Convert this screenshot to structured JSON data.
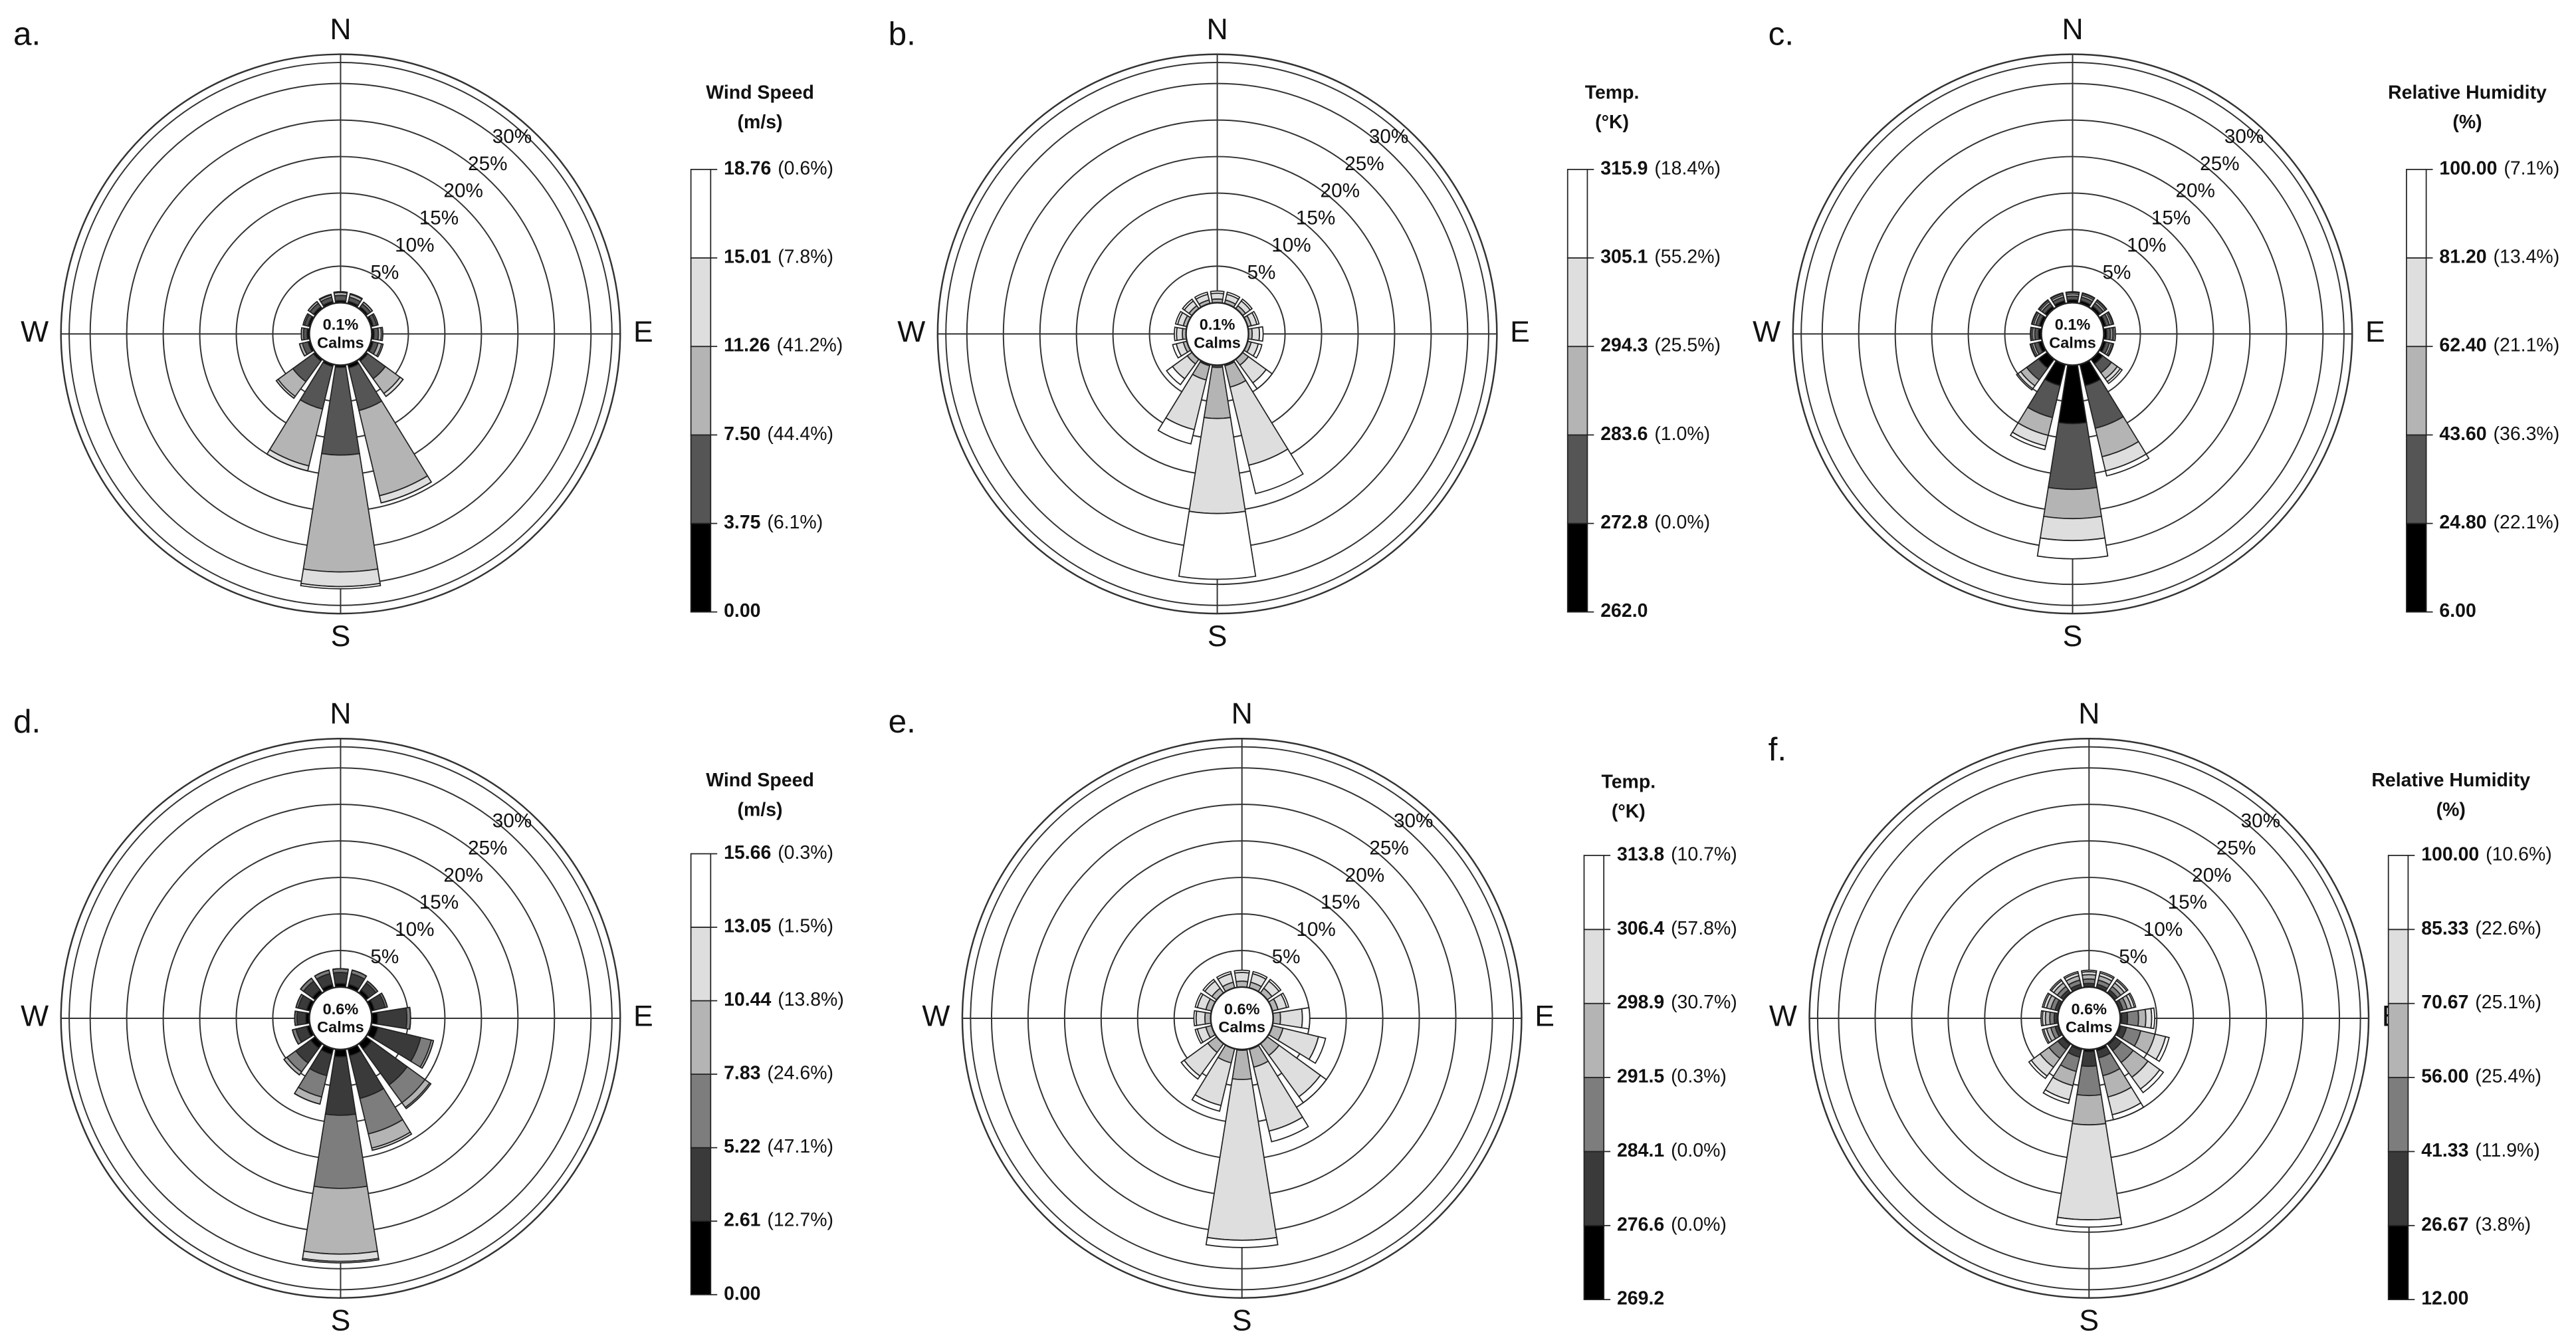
{
  "chart_data": [
    {
      "type": "windrose",
      "panel": "a.",
      "direction_labels": [
        "N",
        "E",
        "S",
        "W"
      ],
      "rlim": [
        0,
        34
      ],
      "rticks": [
        {
          "value": 5,
          "label": "5%"
        },
        {
          "value": 10,
          "label": "10%"
        },
        {
          "value": 15,
          "label": "15%"
        },
        {
          "value": 20,
          "label": "20%"
        },
        {
          "value": 25,
          "label": "25%"
        },
        {
          "value": 30,
          "label": "30%"
        }
      ],
      "calms": {
        "value": 0.1,
        "label": "0.1%"
      },
      "calms_text": "Calms",
      "legend": {
        "title": "Wind Speed",
        "unit": "(m/s)",
        "edges": [
          {
            "value": 0,
            "label": "0.00"
          },
          3.75,
          {
            "value": 7.5,
            "label": "7.50"
          },
          11.26,
          15.01,
          18.76
        ],
        "shares": [
          6.1,
          44.4,
          41.2,
          7.8,
          0.6
        ],
        "share_labels": [
          "(6.1%)",
          "(44.4%)",
          "(41.2%)",
          "(7.8%)",
          "(0.6%)"
        ]
      },
      "series": [
        {
          "color": "#000000",
          "values": [
            0.3,
            0.3,
            0.3,
            0.3,
            0.3,
            0.3,
            0.3,
            0.5,
            0.3,
            0.3,
            0.3,
            0.3,
            0.3,
            0.3,
            0.3,
            0.3
          ]
        },
        {
          "color": "#555555",
          "values": [
            0.7,
            0.6,
            0.5,
            0.5,
            0.6,
            0.7,
            3,
            6,
            12,
            6,
            3.5,
            0.8,
            0.5,
            0.5,
            0.6,
            0.6
          ]
        },
        {
          "color": "#b4b4b4",
          "values": [
            0.4,
            0.4,
            0.3,
            0.2,
            0.4,
            0.5,
            2.5,
            12,
            16,
            8,
            2.5,
            0.4,
            0.3,
            0.2,
            0.3,
            0.3
          ]
        },
        {
          "color": "#dedede",
          "values": [
            0.1,
            0.1,
            0,
            0,
            0.2,
            0.2,
            0.5,
            1,
            2,
            0.7,
            0.3,
            0,
            0,
            0,
            0,
            0.1
          ]
        },
        {
          "color": "#ffffff",
          "values": [
            0,
            0,
            0,
            0,
            0,
            0,
            0,
            0,
            0.3,
            0,
            0,
            0,
            0,
            0,
            0,
            0
          ]
        }
      ]
    },
    {
      "type": "windrose",
      "panel": "b.",
      "direction_labels": [
        "N",
        "E",
        "S",
        "W"
      ],
      "rlim": [
        0,
        34
      ],
      "rticks": [
        {
          "value": 5,
          "label": "5%"
        },
        {
          "value": 10,
          "label": "10%"
        },
        {
          "value": 15,
          "label": "15%"
        },
        {
          "value": 20,
          "label": "20%"
        },
        {
          "value": 25,
          "label": "25%"
        },
        {
          "value": 30,
          "label": "30%"
        }
      ],
      "calms": {
        "value": 0.1,
        "label": "0.1%"
      },
      "calms_text": "Calms",
      "legend": {
        "title": "Temp.",
        "unit": "(°K)",
        "edges": [
          {
            "value": 262,
            "label": "262.0"
          },
          272.8,
          283.6,
          294.3,
          305.1,
          315.9
        ],
        "shares": [
          0,
          1,
          25.5,
          55.2,
          18.4
        ],
        "share_labels": [
          "(0.0%)",
          "(1.0%)",
          "(25.5%)",
          "(55.2%)",
          "(18.4%)"
        ]
      },
      "series": [
        {
          "color": "#000000",
          "values": [
            0,
            0,
            0,
            0,
            0,
            0,
            0,
            0,
            0,
            0,
            0,
            0,
            0,
            0,
            0,
            0
          ]
        },
        {
          "color": "#555555",
          "values": [
            0,
            0,
            0,
            0,
            0,
            0,
            0,
            0.2,
            0.3,
            0.2,
            0,
            0,
            0,
            0,
            0,
            0
          ]
        },
        {
          "color": "#b4b4b4",
          "values": [
            0.5,
            0.5,
            0.5,
            0.5,
            0.5,
            0.5,
            1,
            3,
            7,
            2,
            0.8,
            0.5,
            0.5,
            0.5,
            0.5,
            0.5
          ]
        },
        {
          "color": "#dedede",
          "values": [
            0.8,
            0.8,
            0.8,
            0.8,
            1,
            1,
            3,
            11,
            13,
            7,
            2.5,
            1,
            0.8,
            0.8,
            0.8,
            0.8
          ]
        },
        {
          "color": "#ffffff",
          "values": [
            0.3,
            0.3,
            0.3,
            0.3,
            0.5,
            0.5,
            1,
            4,
            9,
            2,
            1,
            0.5,
            0.3,
            0.3,
            0.3,
            0.3
          ]
        }
      ]
    },
    {
      "type": "windrose",
      "panel": "c.",
      "direction_labels": [
        "N",
        "E",
        "S",
        "W"
      ],
      "rlim": [
        0,
        34
      ],
      "rticks": [
        {
          "value": 5,
          "label": "5%"
        },
        {
          "value": 10,
          "label": "10%"
        },
        {
          "value": 15,
          "label": "15%"
        },
        {
          "value": 20,
          "label": "20%"
        },
        {
          "value": 25,
          "label": "25%"
        },
        {
          "value": 30,
          "label": "30%"
        }
      ],
      "calms": {
        "value": 0.1,
        "label": "0.1%"
      },
      "calms_text": "Calms",
      "legend": {
        "title": "Relative Humidity",
        "unit": "(%)",
        "edges": [
          {
            "value": 6,
            "label": "6.00"
          },
          {
            "value": 24.8,
            "label": "24.80"
          },
          {
            "value": 43.6,
            "label": "43.60"
          },
          {
            "value": 62.4,
            "label": "62.40"
          },
          {
            "value": 81.2,
            "label": "81.20"
          },
          {
            "value": 100,
            "label": "100.00"
          }
        ],
        "shares": [
          22.1,
          36.3,
          21.1,
          13.4,
          7.1
        ],
        "share_labels": [
          "(22.1%)",
          "(36.3%)",
          "(21.1%)",
          "(13.4%)",
          "(7.1%)"
        ]
      },
      "series": [
        {
          "color": "#000000",
          "values": [
            0.4,
            0.4,
            0.4,
            0.4,
            0.4,
            0.4,
            0.8,
            3,
            8,
            3,
            1.5,
            0.5,
            0.4,
            0.4,
            0.4,
            0.4
          ]
        },
        {
          "color": "#555555",
          "values": [
            0.5,
            0.5,
            0.5,
            0.5,
            0.5,
            0.5,
            1.5,
            6,
            9,
            4.5,
            2,
            0.6,
            0.5,
            0.5,
            0.5,
            0.5
          ]
        },
        {
          "color": "#b4b4b4",
          "values": [
            0.3,
            0.3,
            0.3,
            0.3,
            0.3,
            0.3,
            1,
            4,
            4,
            2.5,
            1,
            0.3,
            0.3,
            0.3,
            0.3,
            0.3
          ]
        },
        {
          "color": "#dedede",
          "values": [
            0.2,
            0.2,
            0.2,
            0.2,
            0.2,
            0.2,
            0.5,
            2,
            3,
            1.5,
            0.5,
            0.2,
            0.2,
            0.2,
            0.2,
            0.2
          ]
        },
        {
          "color": "#ffffff",
          "values": [
            0.1,
            0.1,
            0.1,
            0.1,
            0.2,
            0.1,
            0.3,
            0.7,
            2.5,
            0.5,
            0.2,
            0.1,
            0.1,
            0.1,
            0.1,
            0.1
          ]
        }
      ]
    },
    {
      "type": "windrose",
      "panel": "d.",
      "direction_labels": [
        "N",
        "E",
        "S",
        "W"
      ],
      "rlim": [
        0,
        34
      ],
      "rticks": [
        {
          "value": 5,
          "label": "5%"
        },
        {
          "value": 10,
          "label": "10%"
        },
        {
          "value": 15,
          "label": "15%"
        },
        {
          "value": 20,
          "label": "20%"
        },
        {
          "value": 25,
          "label": "25%"
        },
        {
          "value": 30,
          "label": "30%"
        }
      ],
      "calms": {
        "value": 0.6,
        "label": "0.6%"
      },
      "calms_text": "Calms",
      "legend": {
        "title": "Wind Speed",
        "unit": "(m/s)",
        "edges": [
          {
            "value": 0,
            "label": "0.00"
          },
          2.61,
          5.22,
          7.83,
          10.44,
          13.05,
          15.66
        ],
        "shares": [
          12.7,
          47.1,
          24.6,
          13.8,
          1.5,
          0.3
        ],
        "share_labels": [
          "(12.7%)",
          "(47.1%)",
          "(24.6%)",
          "(13.8%)",
          "(1.5%)",
          "(0.3%)"
        ]
      },
      "series": [
        {
          "color": "#000000",
          "values": [
            0.5,
            0.5,
            0.5,
            0.5,
            0.8,
            1,
            1,
            1,
            1,
            0.8,
            0.8,
            0.5,
            0.5,
            0.5,
            0.5,
            0.5
          ]
        },
        {
          "color": "#3a3a3a",
          "values": [
            1.5,
            1.5,
            1.2,
            1.5,
            4,
            6,
            6,
            6,
            8,
            3,
            2.5,
            1.5,
            1.2,
            1.2,
            1.5,
            1.5
          ]
        },
        {
          "color": "#7d7d7d",
          "values": [
            0.5,
            0.5,
            0.3,
            0.3,
            0.5,
            1.5,
            3,
            5,
            10,
            3,
            1.5,
            0.5,
            0.3,
            0.3,
            0.5,
            0.5
          ]
        },
        {
          "color": "#b4b4b4",
          "values": [
            0,
            0,
            0,
            0,
            0,
            0.3,
            0.8,
            2,
            9,
            1,
            0.5,
            0,
            0,
            0,
            0,
            0
          ]
        },
        {
          "color": "#dedede",
          "values": [
            0,
            0,
            0,
            0,
            0,
            0,
            0.2,
            0.3,
            1,
            0,
            0,
            0,
            0,
            0,
            0,
            0
          ]
        },
        {
          "color": "#ffffff",
          "values": [
            0,
            0,
            0,
            0,
            0,
            0,
            0,
            0,
            0.2,
            0,
            0,
            0,
            0,
            0,
            0,
            0
          ]
        }
      ]
    },
    {
      "type": "windrose",
      "panel": "e.",
      "direction_labels": [
        "N",
        "E",
        "S",
        "W"
      ],
      "rlim": [
        0,
        34
      ],
      "rticks": [
        {
          "value": 5,
          "label": "5%"
        },
        {
          "value": 10,
          "label": "10%"
        },
        {
          "value": 15,
          "label": "15%"
        },
        {
          "value": 20,
          "label": "20%"
        },
        {
          "value": 25,
          "label": "25%"
        },
        {
          "value": 30,
          "label": "30%"
        }
      ],
      "calms": {
        "value": 0.6,
        "label": "0.6%"
      },
      "calms_text": "Calms",
      "legend": {
        "title": "Temp.",
        "unit": "(°K)",
        "edges": [
          269.2,
          276.6,
          284.1,
          291.5,
          298.9,
          306.4,
          313.8
        ],
        "shares": [
          0,
          0,
          0.3,
          30.7,
          57.8,
          10.7
        ],
        "share_labels": [
          "(0.0%)",
          "(0.0%)",
          "(0.3%)",
          "(30.7%)",
          "(57.8%)",
          "(10.7%)"
        ]
      },
      "series": [
        {
          "color": "#000000",
          "values": [
            0,
            0,
            0,
            0,
            0,
            0,
            0,
            0,
            0,
            0,
            0,
            0,
            0,
            0,
            0,
            0
          ]
        },
        {
          "color": "#3a3a3a",
          "values": [
            0,
            0,
            0,
            0,
            0,
            0,
            0,
            0,
            0,
            0,
            0,
            0,
            0,
            0,
            0,
            0
          ]
        },
        {
          "color": "#7d7d7d",
          "values": [
            0,
            0,
            0,
            0,
            0,
            0,
            0,
            0.1,
            0.1,
            0,
            0,
            0,
            0,
            0,
            0,
            0
          ]
        },
        {
          "color": "#b4b4b4",
          "values": [
            0.8,
            0.8,
            0.8,
            0.8,
            1,
            1.5,
            2,
            2.5,
            4,
            2,
            1.5,
            0.8,
            0.8,
            0.8,
            0.8,
            0.8
          ]
        },
        {
          "color": "#dedede",
          "values": [
            1.2,
            1.2,
            1.2,
            1.2,
            3,
            5,
            7,
            9,
            22,
            6,
            4,
            1.2,
            1.2,
            1.2,
            1.2,
            1.2
          ]
        },
        {
          "color": "#ffffff",
          "values": [
            0.3,
            0.3,
            0.3,
            0.3,
            1,
            1,
            1,
            1.5,
            1,
            0.8,
            0.5,
            0.3,
            0.3,
            0.3,
            0.3,
            0.3
          ]
        }
      ]
    },
    {
      "type": "windrose",
      "panel": "f.",
      "direction_labels": [
        "N",
        "E",
        "S",
        "W"
      ],
      "rlim": [
        0,
        34
      ],
      "rticks": [
        {
          "value": 5,
          "label": "5%"
        },
        {
          "value": 10,
          "label": "10%"
        },
        {
          "value": 15,
          "label": "15%"
        },
        {
          "value": 20,
          "label": "20%"
        },
        {
          "value": 25,
          "label": "25%"
        },
        {
          "value": 30,
          "label": "30%"
        }
      ],
      "calms": {
        "value": 0.6,
        "label": "0.6%"
      },
      "calms_text": "Calms",
      "legend": {
        "title": "Relative Humidity",
        "unit": "(%)",
        "edges": [
          {
            "value": 12,
            "label": "12.00"
          },
          26.67,
          41.33,
          {
            "value": 56,
            "label": "56.00"
          },
          70.67,
          85.33,
          {
            "value": 100,
            "label": "100.00"
          }
        ],
        "shares": [
          3.8,
          11.9,
          25.4,
          25.1,
          22.6,
          10.6
        ],
        "share_labels": [
          "(3.8%)",
          "(11.9%)",
          "(25.4%)",
          "(25.1%)",
          "(22.6%)",
          "(10.6%)"
        ]
      },
      "series": [
        {
          "color": "#000000",
          "values": [
            0.1,
            0.1,
            0.1,
            0.1,
            0.2,
            0.2,
            0.2,
            0.3,
            0.3,
            0.2,
            0.2,
            0.1,
            0.1,
            0.1,
            0.1,
            0.1
          ]
        },
        {
          "color": "#3a3a3a",
          "values": [
            0.4,
            0.4,
            0.4,
            0.4,
            0.8,
            0.8,
            1,
            1,
            2,
            1,
            0.8,
            0.4,
            0.4,
            0.4,
            0.4,
            0.4
          ]
        },
        {
          "color": "#7d7d7d",
          "values": [
            0.6,
            0.6,
            0.6,
            0.6,
            1.5,
            2,
            2,
            2.5,
            4,
            2,
            1.5,
            0.6,
            0.6,
            0.6,
            0.6,
            0.6
          ]
        },
        {
          "color": "#b4b4b4",
          "values": [
            0.6,
            0.6,
            0.6,
            0.6,
            1,
            2,
            2.5,
            3,
            4,
            2,
            1.5,
            0.6,
            0.6,
            0.6,
            0.6,
            0.6
          ]
        },
        {
          "color": "#dedede",
          "values": [
            0.4,
            0.4,
            0.4,
            0.4,
            0.8,
            1.5,
            2,
            2.5,
            13,
            2,
            1.5,
            0.4,
            0.4,
            0.4,
            0.4,
            0.4
          ]
        },
        {
          "color": "#ffffff",
          "values": [
            0.2,
            0.2,
            0.2,
            0.2,
            0.4,
            0.5,
            0.6,
            0.7,
            1,
            0.5,
            0.4,
            0.2,
            0.2,
            0.2,
            0.2,
            0.2
          ]
        }
      ]
    }
  ]
}
